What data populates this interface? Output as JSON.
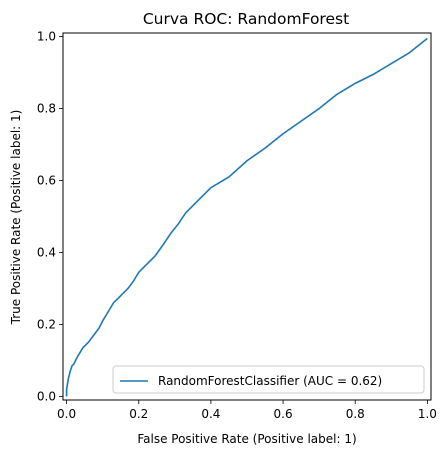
{
  "chart_data": {
    "type": "line",
    "title": "Curva ROC: RandomForest",
    "xlabel": "False Positive Rate (Positive label: 1)",
    "ylabel": "True Positive Rate (Positive label: 1)",
    "xlim": [
      -0.01,
      1.01
    ],
    "ylim": [
      -0.01,
      1.01
    ],
    "xticks": [
      0.0,
      0.2,
      0.4,
      0.6,
      0.8,
      1.0
    ],
    "xtick_labels": [
      "0.0",
      "0.2",
      "0.4",
      "0.6",
      "0.8",
      "1.0"
    ],
    "yticks": [
      0.0,
      0.2,
      0.4,
      0.6,
      0.8,
      1.0
    ],
    "ytick_labels": [
      "0.0",
      "0.2",
      "0.4",
      "0.6",
      "0.8",
      "1.0"
    ],
    "legend": {
      "location": "lower-right",
      "entries": [
        "RandomForestClassifier (AUC = 0.62)"
      ]
    },
    "series": [
      {
        "name": "RandomForestClassifier (AUC = 0.62)",
        "color": "#1f77b4",
        "x": [
          0.0,
          0.0,
          0.005,
          0.01,
          0.015,
          0.02,
          0.03,
          0.045,
          0.06,
          0.075,
          0.09,
          0.1,
          0.115,
          0.13,
          0.15,
          0.17,
          0.185,
          0.2,
          0.22,
          0.245,
          0.27,
          0.29,
          0.31,
          0.33,
          0.36,
          0.4,
          0.45,
          0.5,
          0.55,
          0.6,
          0.65,
          0.7,
          0.75,
          0.8,
          0.85,
          0.9,
          0.95,
          1.0
        ],
        "y": [
          0.0,
          0.02,
          0.05,
          0.07,
          0.085,
          0.09,
          0.11,
          0.135,
          0.15,
          0.17,
          0.19,
          0.21,
          0.235,
          0.26,
          0.28,
          0.3,
          0.32,
          0.345,
          0.365,
          0.39,
          0.425,
          0.455,
          0.48,
          0.51,
          0.54,
          0.58,
          0.61,
          0.655,
          0.69,
          0.73,
          0.765,
          0.8,
          0.84,
          0.87,
          0.895,
          0.925,
          0.955,
          0.995
        ]
      }
    ]
  }
}
